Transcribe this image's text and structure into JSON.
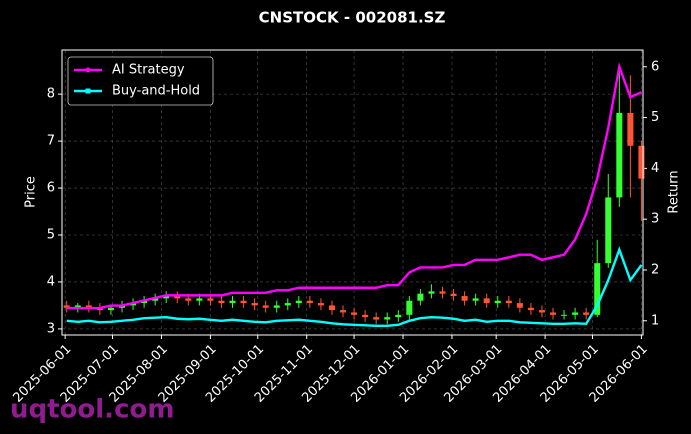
{
  "chart_data": {
    "type": "candlestick-with-lines",
    "title": "CNSTOCK - 002081.SZ",
    "y_label": "Price",
    "y2_label": "Return",
    "watermark": "uqtool.com",
    "x": [
      "2025-06-02",
      "2025-06-09",
      "2025-06-16",
      "2025-06-23",
      "2025-06-30",
      "2025-07-07",
      "2025-07-14",
      "2025-07-21",
      "2025-07-28",
      "2025-08-04",
      "2025-08-11",
      "2025-08-18",
      "2025-08-25",
      "2025-09-01",
      "2025-09-08",
      "2025-09-15",
      "2025-09-22",
      "2025-09-29",
      "2025-10-06",
      "2025-10-13",
      "2025-10-20",
      "2025-10-27",
      "2025-11-03",
      "2025-11-10",
      "2025-11-17",
      "2025-11-24",
      "2025-12-01",
      "2025-12-08",
      "2025-12-15",
      "2025-12-22",
      "2025-12-29",
      "2026-01-05",
      "2026-01-12",
      "2026-01-19",
      "2026-01-26",
      "2026-02-02",
      "2026-02-09",
      "2026-02-16",
      "2026-02-23",
      "2026-03-02",
      "2026-03-09",
      "2026-03-16",
      "2026-03-23",
      "2026-03-30",
      "2026-04-06",
      "2026-04-13",
      "2026-04-20",
      "2026-04-27",
      "2026-05-04",
      "2026-05-11",
      "2026-05-18",
      "2026-05-25",
      "2026-06-01"
    ],
    "open": [
      3.5,
      3.45,
      3.5,
      3.45,
      3.4,
      3.45,
      3.5,
      3.55,
      3.6,
      3.65,
      3.7,
      3.65,
      3.6,
      3.65,
      3.6,
      3.55,
      3.6,
      3.55,
      3.5,
      3.45,
      3.5,
      3.55,
      3.6,
      3.55,
      3.5,
      3.4,
      3.35,
      3.3,
      3.25,
      3.2,
      3.25,
      3.3,
      3.6,
      3.75,
      3.8,
      3.75,
      3.7,
      3.6,
      3.65,
      3.55,
      3.6,
      3.55,
      3.45,
      3.4,
      3.35,
      3.3,
      3.3,
      3.35,
      3.3,
      4.4,
      5.8,
      7.6,
      6.9
    ],
    "high": [
      3.6,
      3.55,
      3.6,
      3.55,
      3.5,
      3.6,
      3.65,
      3.7,
      3.75,
      3.8,
      3.8,
      3.75,
      3.75,
      3.75,
      3.7,
      3.7,
      3.7,
      3.65,
      3.6,
      3.6,
      3.65,
      3.7,
      3.7,
      3.65,
      3.6,
      3.5,
      3.45,
      3.4,
      3.35,
      3.35,
      3.4,
      3.7,
      3.85,
      3.95,
      3.9,
      3.85,
      3.8,
      3.75,
      3.75,
      3.7,
      3.7,
      3.65,
      3.55,
      3.5,
      3.45,
      3.4,
      3.45,
      3.45,
      4.9,
      6.3,
      8.6,
      8.4,
      7.0
    ],
    "low": [
      3.35,
      3.35,
      3.35,
      3.3,
      3.3,
      3.35,
      3.4,
      3.45,
      3.5,
      3.55,
      3.55,
      3.5,
      3.5,
      3.5,
      3.45,
      3.45,
      3.45,
      3.4,
      3.35,
      3.35,
      3.4,
      3.45,
      3.45,
      3.4,
      3.3,
      3.25,
      3.2,
      3.15,
      3.1,
      3.1,
      3.15,
      3.2,
      3.5,
      3.65,
      3.65,
      3.6,
      3.5,
      3.5,
      3.45,
      3.45,
      3.45,
      3.35,
      3.3,
      3.25,
      3.2,
      3.2,
      3.2,
      3.2,
      3.25,
      4.3,
      5.6,
      5.8,
      5.3
    ],
    "close": [
      3.45,
      3.5,
      3.45,
      3.4,
      3.45,
      3.5,
      3.55,
      3.6,
      3.65,
      3.7,
      3.65,
      3.6,
      3.65,
      3.6,
      3.55,
      3.6,
      3.55,
      3.5,
      3.45,
      3.5,
      3.55,
      3.6,
      3.55,
      3.5,
      3.4,
      3.35,
      3.3,
      3.25,
      3.2,
      3.25,
      3.3,
      3.6,
      3.75,
      3.8,
      3.75,
      3.7,
      3.6,
      3.65,
      3.55,
      3.6,
      3.55,
      3.45,
      3.4,
      3.35,
      3.3,
      3.3,
      3.35,
      3.3,
      4.4,
      5.8,
      7.6,
      6.9,
      6.2
    ],
    "up_color": "#33ff33",
    "down_color": "#ff5533",
    "series": [
      {
        "name": "AI Strategy",
        "color": "#ff00ff",
        "axis": "y2",
        "values": [
          1.25,
          1.25,
          1.25,
          1.25,
          1.3,
          1.3,
          1.35,
          1.4,
          1.45,
          1.5,
          1.5,
          1.5,
          1.5,
          1.5,
          1.5,
          1.55,
          1.55,
          1.55,
          1.55,
          1.6,
          1.6,
          1.65,
          1.65,
          1.65,
          1.65,
          1.65,
          1.65,
          1.65,
          1.65,
          1.7,
          1.7,
          1.95,
          2.05,
          2.05,
          2.05,
          2.1,
          2.1,
          2.2,
          2.2,
          2.2,
          2.25,
          2.3,
          2.3,
          2.2,
          2.25,
          2.3,
          2.6,
          3.1,
          3.8,
          4.8,
          6.0,
          5.4,
          5.5
        ]
      },
      {
        "name": "Buy-and-Hold",
        "color": "#00ffff",
        "axis": "y2",
        "values": [
          1.0,
          0.98,
          1.0,
          0.97,
          0.98,
          1.0,
          1.02,
          1.05,
          1.06,
          1.07,
          1.04,
          1.03,
          1.04,
          1.02,
          1.0,
          1.02,
          1.0,
          0.98,
          0.97,
          1.0,
          1.01,
          1.02,
          1.0,
          0.98,
          0.95,
          0.93,
          0.92,
          0.91,
          0.9,
          0.9,
          0.92,
          1.0,
          1.05,
          1.07,
          1.06,
          1.04,
          1.0,
          1.02,
          0.98,
          1.0,
          1.0,
          0.97,
          0.96,
          0.95,
          0.94,
          0.94,
          0.95,
          0.94,
          1.3,
          1.8,
          2.4,
          1.8,
          2.1
        ]
      }
    ],
    "xlim": [
      "2025-05-30",
      "2026-06-02"
    ],
    "xticks": [
      "2025-06-01",
      "2025-07-01",
      "2025-08-01",
      "2025-09-01",
      "2025-10-01",
      "2025-11-01",
      "2025-12-01",
      "2026-01-01",
      "2026-02-01",
      "2026-03-01",
      "2026-04-01",
      "2026-05-01",
      "2026-06-01"
    ],
    "ylim": [
      2.87,
      8.94
    ],
    "yticks": [
      3,
      4,
      5,
      6,
      7,
      8
    ],
    "y2lim": [
      0.72,
      6.33
    ],
    "y2ticks": [
      1,
      2,
      3,
      4,
      5,
      6
    ],
    "grid": true,
    "legend": "upper left"
  }
}
